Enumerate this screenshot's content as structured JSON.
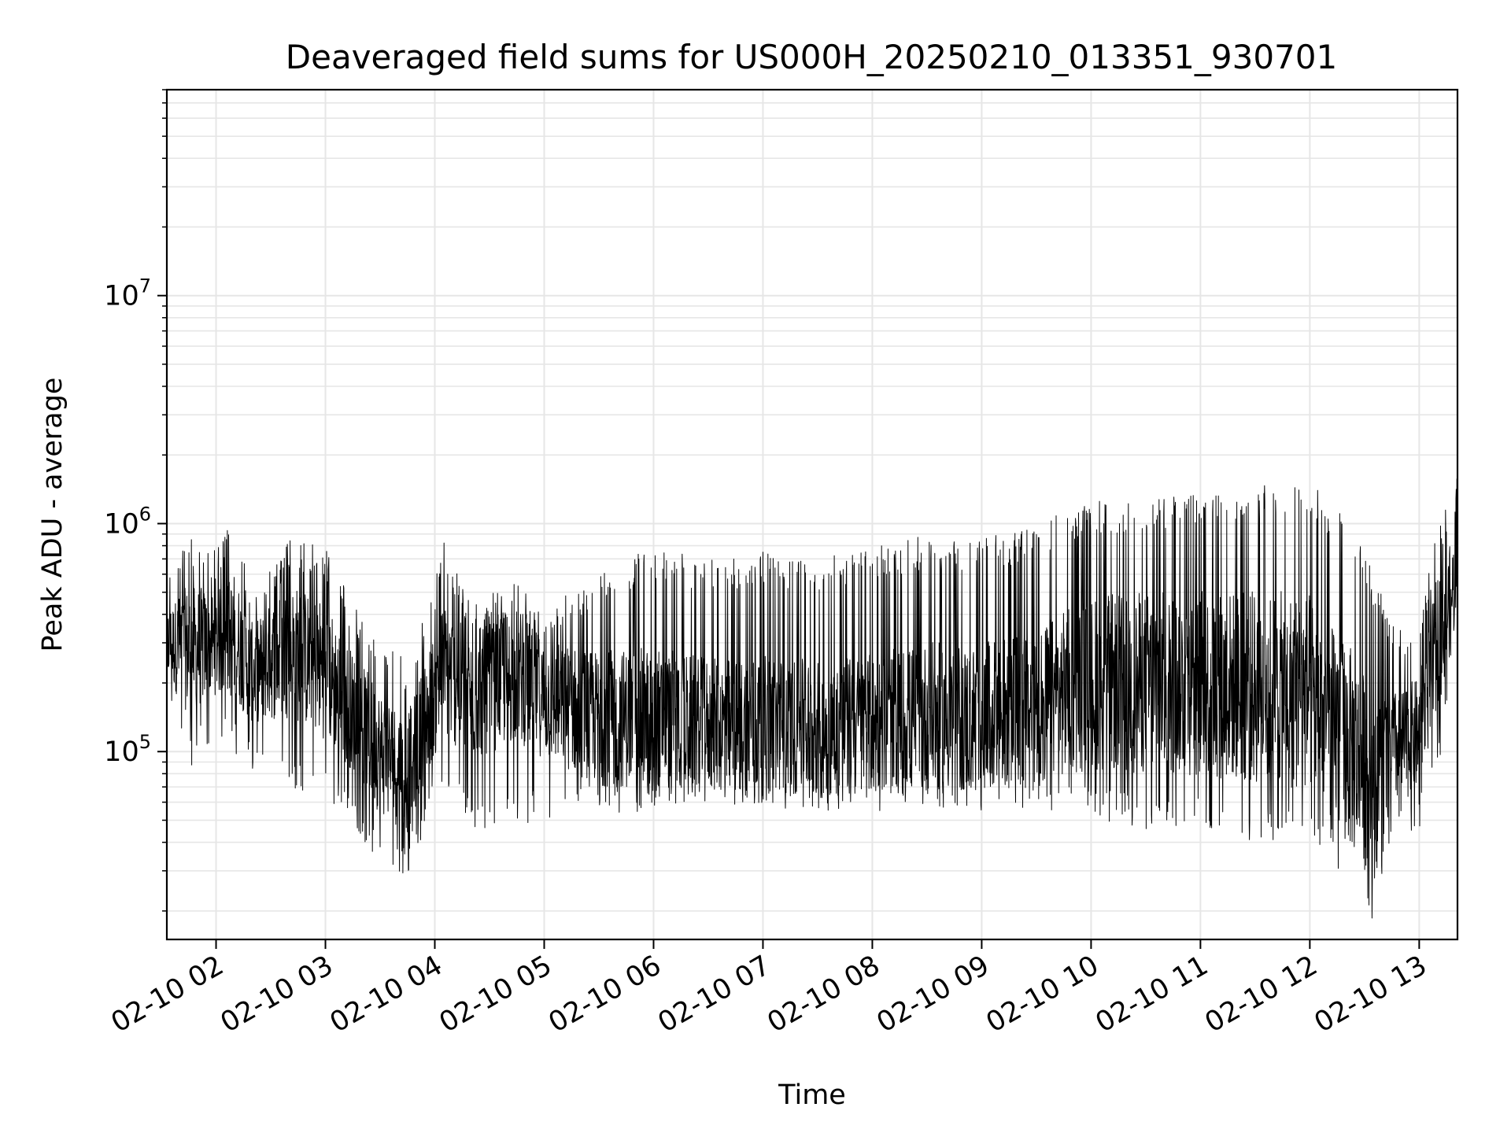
{
  "chart_data": {
    "type": "line",
    "title": "Deaveraged field sums for US000H_20250210_013351_930701",
    "xlabel": "Time",
    "ylabel": "Peak ADU - average",
    "yscale": "log",
    "ylim": [
      15000,
      80000000
    ],
    "xlim": [
      "2025-02-10 01:33",
      "2025-02-10 13:21"
    ],
    "grid": true,
    "line_color": "#000000",
    "grid_color": "#e6e6e6",
    "x_ticks": [
      {
        "value": "2025-02-10 02:00",
        "label": "02-10 02"
      },
      {
        "value": "2025-02-10 03:00",
        "label": "02-10 03"
      },
      {
        "value": "2025-02-10 04:00",
        "label": "02-10 04"
      },
      {
        "value": "2025-02-10 05:00",
        "label": "02-10 05"
      },
      {
        "value": "2025-02-10 06:00",
        "label": "02-10 06"
      },
      {
        "value": "2025-02-10 07:00",
        "label": "02-10 07"
      },
      {
        "value": "2025-02-10 08:00",
        "label": "02-10 08"
      },
      {
        "value": "2025-02-10 09:00",
        "label": "02-10 09"
      },
      {
        "value": "2025-02-10 10:00",
        "label": "02-10 10"
      },
      {
        "value": "2025-02-10 11:00",
        "label": "02-10 11"
      },
      {
        "value": "2025-02-10 12:00",
        "label": "02-10 12"
      },
      {
        "value": "2025-02-10 13:00",
        "label": "02-10 13"
      }
    ],
    "y_ticks": [
      {
        "value": 100000,
        "base": "10",
        "exp": "5"
      },
      {
        "value": 1000000,
        "base": "10",
        "exp": "6"
      },
      {
        "value": 10000000,
        "base": "10",
        "exp": "7"
      }
    ],
    "series": [
      {
        "envelope": [
          {
            "x": "2025-02-10 01:33",
            "low": 180000,
            "high": 650000,
            "mid": 300000
          },
          {
            "x": "2025-02-10 01:45",
            "low": 80000,
            "high": 900000,
            "mid": 280000
          },
          {
            "x": "2025-02-10 02:00",
            "low": 120000,
            "high": 800000,
            "mid": 300000
          },
          {
            "x": "2025-02-10 02:10",
            "low": 100000,
            "high": 1050000,
            "mid": 320000
          },
          {
            "x": "2025-02-10 02:20",
            "low": 80000,
            "high": 500000,
            "mid": 220000
          },
          {
            "x": "2025-02-10 02:40",
            "low": 70000,
            "high": 850000,
            "mid": 280000
          },
          {
            "x": "2025-02-10 03:00",
            "low": 60000,
            "high": 800000,
            "mid": 230000
          },
          {
            "x": "2025-02-10 03:15",
            "low": 50000,
            "high": 450000,
            "mid": 150000
          },
          {
            "x": "2025-02-10 03:30",
            "low": 30000,
            "high": 300000,
            "mid": 100000
          },
          {
            "x": "2025-02-10 03:45",
            "low": 28000,
            "high": 250000,
            "mid": 80000
          },
          {
            "x": "2025-02-10 03:55",
            "low": 45000,
            "high": 400000,
            "mid": 140000
          },
          {
            "x": "2025-02-10 04:05",
            "low": 70000,
            "high": 850000,
            "mid": 230000
          },
          {
            "x": "2025-02-10 04:20",
            "low": 45000,
            "high": 450000,
            "mid": 170000
          },
          {
            "x": "2025-02-10 04:45",
            "low": 45000,
            "high": 550000,
            "mid": 220000
          },
          {
            "x": "2025-02-10 05:00",
            "low": 50000,
            "high": 450000,
            "mid": 170000
          },
          {
            "x": "2025-02-10 05:30",
            "low": 50000,
            "high": 600000,
            "mid": 140000
          },
          {
            "x": "2025-02-10 06:00",
            "low": 55000,
            "high": 800000,
            "mid": 140000
          },
          {
            "x": "2025-02-10 06:30",
            "low": 60000,
            "high": 700000,
            "mid": 130000
          },
          {
            "x": "2025-02-10 07:00",
            "low": 55000,
            "high": 750000,
            "mid": 130000
          },
          {
            "x": "2025-02-10 07:30",
            "low": 55000,
            "high": 700000,
            "mid": 125000
          },
          {
            "x": "2025-02-10 08:00",
            "low": 55000,
            "high": 780000,
            "mid": 130000
          },
          {
            "x": "2025-02-10 08:30",
            "low": 55000,
            "high": 900000,
            "mid": 140000
          },
          {
            "x": "2025-02-10 09:00",
            "low": 55000,
            "high": 850000,
            "mid": 140000
          },
          {
            "x": "2025-02-10 09:30",
            "low": 55000,
            "high": 1000000,
            "mid": 160000
          },
          {
            "x": "2025-02-10 10:00",
            "low": 50000,
            "high": 1250000,
            "mid": 200000
          },
          {
            "x": "2025-02-10 10:30",
            "low": 45000,
            "high": 1300000,
            "mid": 200000
          },
          {
            "x": "2025-02-10 11:00",
            "low": 45000,
            "high": 1400000,
            "mid": 200000
          },
          {
            "x": "2025-02-10 11:30",
            "low": 40000,
            "high": 1450000,
            "mid": 190000
          },
          {
            "x": "2025-02-10 12:00",
            "low": 40000,
            "high": 1600000,
            "mid": 180000
          },
          {
            "x": "2025-02-10 12:10",
            "low": 35000,
            "high": 1200000,
            "mid": 140000
          },
          {
            "x": "2025-02-10 12:20",
            "low": 25000,
            "high": 1100000,
            "mid": 110000
          },
          {
            "x": "2025-02-10 12:35",
            "low": 18000,
            "high": 600000,
            "mid": 70000
          },
          {
            "x": "2025-02-10 12:45",
            "low": 45000,
            "high": 400000,
            "mid": 100000
          },
          {
            "x": "2025-02-10 13:00",
            "low": 45000,
            "high": 350000,
            "mid": 120000
          },
          {
            "x": "2025-02-10 13:10",
            "low": 80000,
            "high": 1000000,
            "mid": 300000
          },
          {
            "x": "2025-02-10 13:21",
            "low": 300000,
            "high": 1600000,
            "mid": 600000
          }
        ]
      }
    ]
  }
}
